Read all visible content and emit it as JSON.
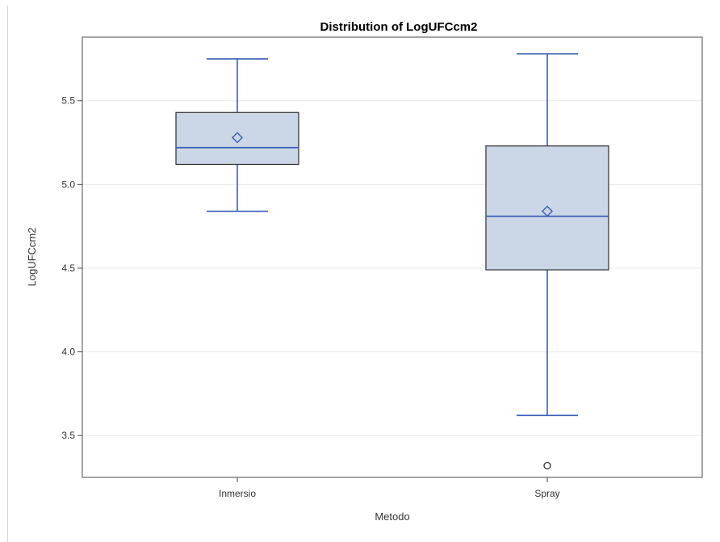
{
  "chart_data": {
    "type": "box",
    "title": "Distribution of LogUFCcm2",
    "xlabel": "Metodo",
    "ylabel": "LogUFCcm2",
    "ylim": [
      3.25,
      5.88
    ],
    "yticks": [
      3.5,
      4.0,
      4.5,
      5.0,
      5.5
    ],
    "ytick_labels": [
      "3.5",
      "4.0",
      "4.5",
      "5.0",
      "5.5"
    ],
    "grid": true,
    "legend": "none",
    "categories": [
      "Inmersio",
      "Spray"
    ],
    "boxes": [
      {
        "category": "Inmersio",
        "whisker_low": 4.84,
        "q1": 5.12,
        "median": 5.22,
        "mean": 5.28,
        "q3": 5.43,
        "whisker_high": 5.75,
        "outliers": []
      },
      {
        "category": "Spray",
        "whisker_low": 3.62,
        "q1": 4.49,
        "median": 4.81,
        "mean": 4.84,
        "q3": 5.23,
        "whisker_high": 5.78,
        "outliers": [
          3.32
        ]
      }
    ],
    "colors": {
      "box_fill": "#cbd6e6",
      "box_border": "#2d2d2d",
      "whisker": "#3b5fb5",
      "grid": "#e8e8e8",
      "outlier": "#333333"
    }
  }
}
